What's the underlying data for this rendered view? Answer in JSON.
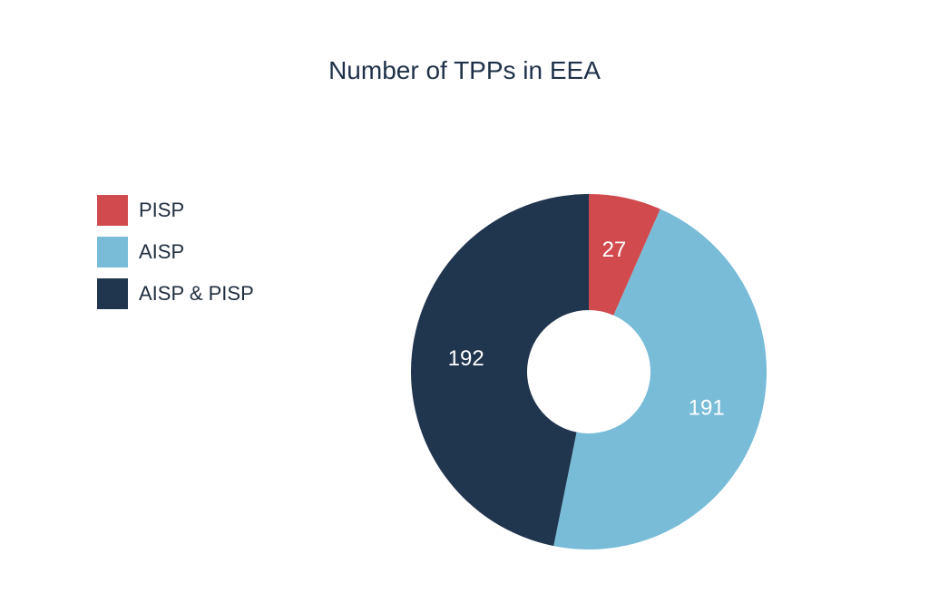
{
  "chart_data": {
    "type": "pie",
    "title": "Number of TPPs in EEA",
    "categories": [
      "PISP",
      "AISP",
      "AISP & PISP"
    ],
    "values": [
      27,
      191,
      192
    ],
    "colors": [
      "#d14b4e",
      "#78bcd8",
      "#20354e"
    ],
    "donut": true,
    "legend_placement": "left"
  }
}
